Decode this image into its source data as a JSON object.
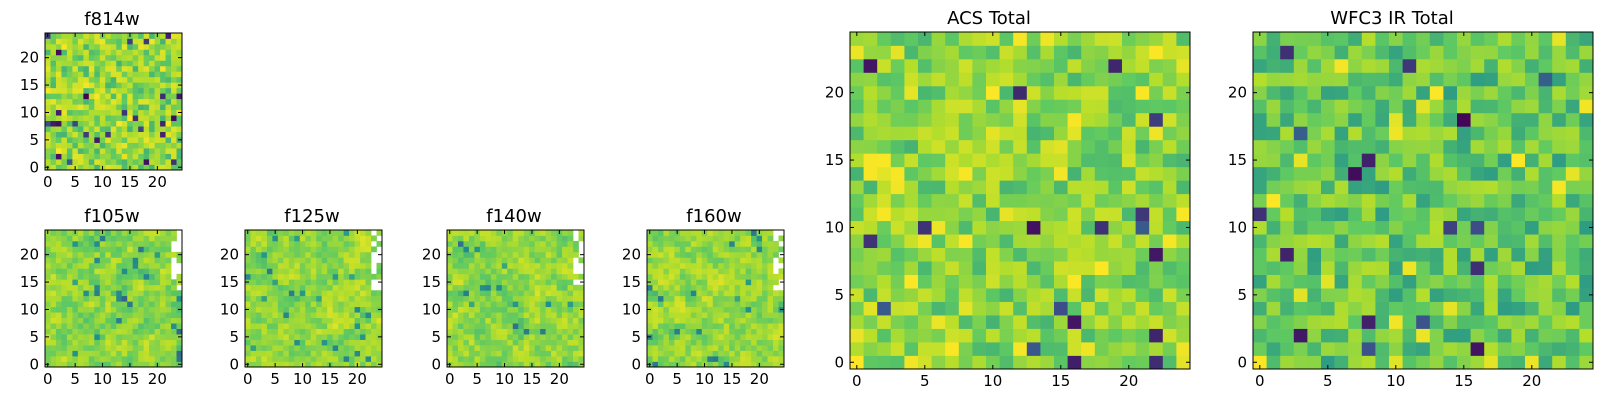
{
  "figure": {
    "colormap": "viridis",
    "colormap_stops": [
      "#440154",
      "#3b528b",
      "#21918c",
      "#5ec962",
      "#b5de2b",
      "#fde725"
    ]
  },
  "chart_data": [
    {
      "type": "heatmap",
      "title": "f814w",
      "grid_size": 25,
      "xlim": [
        0,
        25
      ],
      "ylim": [
        0,
        25
      ],
      "xticks": [
        0,
        5,
        10,
        15,
        20
      ],
      "yticks": [
        0,
        5,
        10,
        15,
        20
      ],
      "seed": 814,
      "grid": false,
      "value_range": [
        0,
        1
      ],
      "value_mean": 0.72,
      "value_spread": 0.2,
      "smooth": false
    },
    {
      "type": "heatmap",
      "title": "f105w",
      "grid_size": 25,
      "xlim": [
        0,
        25
      ],
      "ylim": [
        0,
        25
      ],
      "xticks": [
        0,
        5,
        10,
        15,
        20
      ],
      "yticks": [
        0,
        5,
        10,
        15,
        20
      ],
      "seed": 105,
      "grid": false,
      "value_range": [
        0,
        1
      ],
      "value_mean": 0.7,
      "value_spread": 0.2,
      "smooth": true
    },
    {
      "type": "heatmap",
      "title": "f125w",
      "grid_size": 25,
      "xlim": [
        0,
        25
      ],
      "ylim": [
        0,
        25
      ],
      "xticks": [
        0,
        5,
        10,
        15,
        20
      ],
      "yticks": [
        0,
        5,
        10,
        15,
        20
      ],
      "seed": 125,
      "grid": false,
      "value_range": [
        0,
        1
      ],
      "value_mean": 0.72,
      "value_spread": 0.2,
      "smooth": true
    },
    {
      "type": "heatmap",
      "title": "f140w",
      "grid_size": 25,
      "xlim": [
        0,
        25
      ],
      "ylim": [
        0,
        25
      ],
      "xticks": [
        0,
        5,
        10,
        15,
        20
      ],
      "yticks": [
        0,
        5,
        10,
        15,
        20
      ],
      "seed": 140,
      "grid": false,
      "value_range": [
        0,
        1
      ],
      "value_mean": 0.7,
      "value_spread": 0.2,
      "smooth": true
    },
    {
      "type": "heatmap",
      "title": "f160w",
      "grid_size": 25,
      "xlim": [
        0,
        25
      ],
      "ylim": [
        0,
        25
      ],
      "xticks": [
        0,
        5,
        10,
        15,
        20
      ],
      "yticks": [
        0,
        5,
        10,
        15,
        20
      ],
      "seed": 160,
      "grid": false,
      "value_range": [
        0,
        1
      ],
      "value_mean": 0.72,
      "value_spread": 0.2,
      "smooth": true
    },
    {
      "type": "heatmap",
      "title": "ACS Total",
      "grid_size": 25,
      "xlim": [
        0,
        25
      ],
      "ylim": [
        0,
        25
      ],
      "xticks": [
        0,
        5,
        10,
        15,
        20
      ],
      "yticks": [
        0,
        5,
        10,
        15,
        20
      ],
      "seed": 900,
      "grid": false,
      "value_range": [
        0,
        1
      ],
      "value_mean": 0.7,
      "value_spread": 0.18,
      "smooth": false
    },
    {
      "type": "heatmap",
      "title": "WFC3 IR Total",
      "grid_size": 25,
      "xlim": [
        0,
        25
      ],
      "ylim": [
        0,
        25
      ],
      "xticks": [
        0,
        5,
        10,
        15,
        20
      ],
      "yticks": [
        0,
        5,
        10,
        15,
        20
      ],
      "seed": 901,
      "grid": false,
      "value_range": [
        0,
        1
      ],
      "value_mean": 0.62,
      "value_spread": 0.18,
      "smooth": false
    }
  ]
}
